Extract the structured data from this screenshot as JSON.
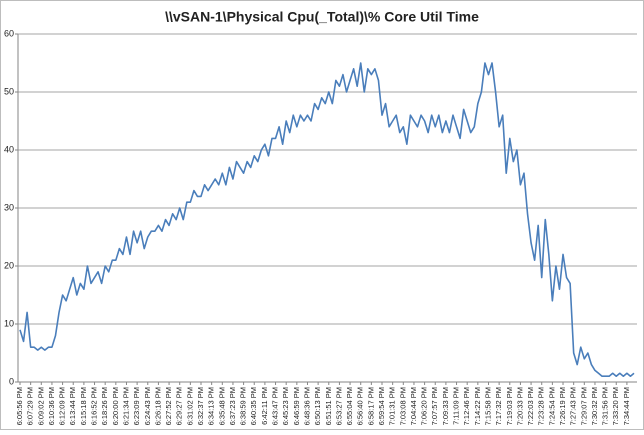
{
  "chart_data": {
    "type": "line",
    "title": "\\\\vSAN-1\\Physical Cpu(_Total)\\% Core Util Time",
    "categories": [
      "6:05:56 PM",
      null,
      null,
      "6:07:29 PM",
      null,
      null,
      "6:09:02 PM",
      null,
      null,
      "6:10:36 PM",
      null,
      null,
      "6:12:09 PM",
      null,
      null,
      "6:13:44 PM",
      null,
      null,
      "6:15:18 PM",
      null,
      null,
      "6:16:52 PM",
      null,
      null,
      "6:18:26 PM",
      null,
      null,
      "6:20:00 PM",
      null,
      null,
      "6:21:34 PM",
      null,
      null,
      "6:23:09 PM",
      null,
      null,
      "6:24:43 PM",
      null,
      null,
      "6:26:18 PM",
      null,
      null,
      "6:27:52 PM",
      null,
      null,
      "6:29:27 PM",
      null,
      null,
      "6:31:02 PM",
      null,
      null,
      "6:32:37 PM",
      null,
      null,
      "6:34:13 PM",
      null,
      null,
      "6:35:48 PM",
      null,
      null,
      "6:37:23 PM",
      null,
      null,
      "6:38:59 PM",
      null,
      null,
      "6:40:35 PM",
      null,
      null,
      "6:42:11 PM",
      null,
      null,
      "6:43:47 PM",
      null,
      null,
      "6:45:23 PM",
      null,
      null,
      "6:46:59 PM",
      null,
      null,
      "6:48:36 PM",
      null,
      null,
      "6:50:13 PM",
      null,
      null,
      "6:51:51 PM",
      null,
      null,
      "6:53:27 PM",
      null,
      null,
      "6:55:04 PM",
      null,
      null,
      "6:56:40 PM",
      null,
      null,
      "6:58:17 PM",
      null,
      null,
      "6:59:54 PM",
      null,
      null,
      "7:01:31 PM",
      null,
      null,
      "7:03:08 PM",
      null,
      null,
      "7:04:44 PM",
      null,
      null,
      "7:06:20 PM",
      null,
      null,
      "7:07:57 PM",
      null,
      null,
      "7:09:33 PM",
      null,
      null,
      "7:11:09 PM",
      null,
      null,
      "7:12:46 PM",
      null,
      null,
      "7:14:22 PM",
      null,
      null,
      "7:15:58 PM",
      null,
      null,
      "7:17:32 PM",
      null,
      null,
      "7:19:03 PM",
      null,
      null,
      "7:20:33 PM",
      null,
      null,
      "7:22:03 PM",
      null,
      null,
      "7:23:28 PM",
      null,
      null,
      "7:24:54 PM",
      null,
      null,
      "7:26:19 PM",
      null,
      null,
      "7:27:43 PM",
      null,
      null,
      "7:29:07 PM",
      null,
      null,
      "7:30:32 PM",
      null,
      null,
      "7:31:56 PM",
      null,
      null,
      "7:33:20 PM",
      null,
      null,
      "7:34:44 PM",
      null,
      null
    ],
    "values": [
      9,
      7,
      12,
      6,
      6,
      5.5,
      6,
      5.5,
      6,
      6,
      8,
      12,
      15,
      14,
      16,
      18,
      15,
      17,
      16,
      20,
      17,
      18,
      19,
      17,
      20,
      19,
      21,
      21,
      23,
      22,
      25,
      22,
      26,
      24,
      26,
      23,
      25,
      26,
      26,
      27,
      26,
      28,
      27,
      29,
      28,
      30,
      28,
      31,
      31,
      33,
      32,
      32,
      34,
      33,
      34,
      35,
      34,
      36,
      34,
      37,
      35,
      38,
      37,
      36,
      38,
      37,
      39,
      38,
      40,
      41,
      39,
      42,
      42,
      44,
      41,
      45,
      43,
      46,
      44,
      46,
      45,
      46,
      45,
      48,
      47,
      49,
      48,
      50,
      48,
      52,
      51,
      53,
      50,
      52,
      54,
      51,
      55,
      50,
      54,
      53,
      54,
      52,
      46,
      48,
      44,
      45,
      46,
      43,
      44,
      41,
      46,
      45,
      44,
      46,
      45,
      43,
      46,
      44,
      46,
      43,
      45,
      43,
      46,
      44,
      42,
      47,
      45,
      43,
      44,
      48,
      50,
      55,
      53,
      55,
      50,
      44,
      46,
      36,
      42,
      38,
      40,
      34,
      36,
      29,
      24,
      21,
      27,
      18,
      28,
      22,
      14,
      20,
      16,
      22,
      18,
      17,
      5,
      3,
      6,
      4,
      5,
      3,
      2,
      1.5,
      1,
      1,
      1,
      1.5,
      1,
      1.5,
      1,
      1.5,
      1,
      1.5
    ],
    "color": "#4a7ebb",
    "ylim": [
      0,
      60
    ],
    "yticks": [
      0,
      10,
      20,
      30,
      40,
      50,
      60
    ],
    "grid": true
  }
}
